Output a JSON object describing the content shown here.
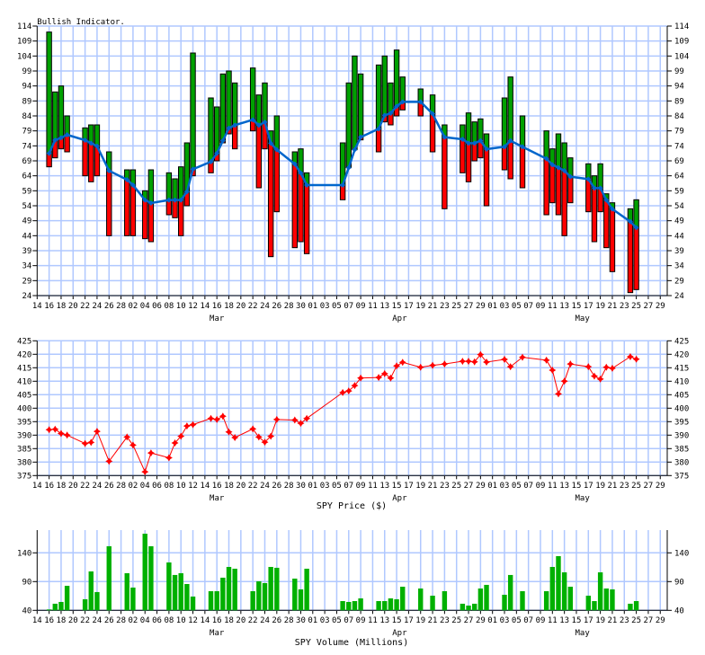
{
  "chart_data": [
    {
      "type": "bar",
      "title": "Bullish Indicator.",
      "ylim": [
        24,
        114
      ],
      "y_ticks": [
        "24",
        "29",
        "34",
        "39",
        "44",
        "49",
        "54",
        "59",
        "64",
        "69",
        "74",
        "79",
        "84",
        "89",
        "94",
        "99",
        "104",
        "109",
        "114"
      ],
      "grid": true,
      "colors": {
        "above": "#00a000",
        "below": "#ff0000",
        "line": "#0066cc"
      },
      "dates": [
        "02-16",
        "02-17",
        "02-18",
        "02-19",
        "02-22",
        "02-23",
        "02-24",
        "02-26",
        "03-01",
        "03-02",
        "03-04",
        "03-05",
        "03-08",
        "03-09",
        "03-10",
        "03-11",
        "03-12",
        "03-15",
        "03-16",
        "03-17",
        "03-18",
        "03-19",
        "03-22",
        "03-23",
        "03-24",
        "03-25",
        "03-26",
        "03-29",
        "03-30",
        "03-31",
        "04-06",
        "04-07",
        "04-08",
        "04-09",
        "04-12",
        "04-13",
        "04-14",
        "04-15",
        "04-16",
        "04-19",
        "04-21",
        "04-23",
        "04-26",
        "04-27",
        "04-28",
        "04-29",
        "04-30",
        "05-03",
        "05-04",
        "05-06",
        "05-10",
        "05-11",
        "05-12",
        "05-13",
        "05-14",
        "05-17",
        "05-18",
        "05-19",
        "05-20",
        "05-21",
        "05-24",
        "05-25"
      ],
      "high": [
        112,
        92,
        94,
        84,
        80,
        81,
        81,
        72,
        66,
        66,
        59,
        66,
        65,
        63,
        67,
        75,
        105,
        90,
        87,
        98,
        99,
        95,
        100,
        91,
        95,
        79,
        84,
        72,
        73,
        65,
        75,
        95,
        104,
        98,
        101,
        104,
        95,
        106,
        97,
        93,
        91,
        81,
        81,
        85,
        82,
        83,
        78,
        90,
        97,
        84,
        79,
        73,
        78,
        75,
        70,
        68,
        64,
        68,
        58,
        55,
        53,
        56
      ],
      "low": [
        67,
        70,
        73,
        72,
        64,
        62,
        64,
        44,
        44,
        44,
        43,
        42,
        51,
        50,
        44,
        54,
        64,
        65,
        69,
        75,
        78,
        73,
        79,
        60,
        73,
        37,
        52,
        40,
        42,
        38,
        56,
        67,
        73,
        76,
        72,
        82,
        81,
        84,
        86,
        84,
        72,
        53,
        65,
        62,
        69,
        70,
        54,
        66,
        63,
        60,
        51,
        55,
        51,
        44,
        55,
        52,
        42,
        52,
        40,
        32,
        25,
        26
      ],
      "line": [
        71.5,
        75.9,
        76.7,
        77.7,
        75.9,
        74.9,
        73.9,
        65.7,
        62.7,
        60.9,
        55.9,
        54.9,
        55.9,
        55.9,
        55.9,
        58.7,
        66.2,
        68.7,
        71.5,
        75.7,
        79.9,
        80.9,
        82.7,
        80.9,
        81.9,
        74.9,
        72.7,
        67.9,
        64.9,
        60.9,
        60.9,
        66.7,
        72.7,
        76.9,
        79.7,
        84.2,
        84.9,
        87.2,
        88.7,
        88.7,
        84.7,
        76.9,
        76.2,
        74.9,
        74.9,
        75.7,
        72.9,
        73.7,
        75.7,
        73.7,
        69.7,
        67.7,
        66.7,
        65.7,
        63.7,
        62.9,
        59.9,
        59.9,
        55.9,
        52.9,
        48.7,
        46.7
      ]
    },
    {
      "type": "line",
      "xlabel": "SPY Price ($)",
      "ylim": [
        375,
        425
      ],
      "y_ticks": [
        "375",
        "380",
        "385",
        "390",
        "395",
        "400",
        "405",
        "410",
        "415",
        "420",
        "425"
      ],
      "grid": true,
      "color": "#ff0000",
      "values": [
        392.0,
        392.2,
        390.6,
        390.0,
        386.9,
        387.3,
        391.4,
        380.3,
        389.3,
        386.3,
        376.4,
        383.4,
        381.6,
        387.1,
        389.6,
        393.4,
        393.9,
        396.2,
        395.8,
        397.0,
        391.2,
        389.1,
        392.3,
        389.3,
        387.4,
        389.6,
        395.8,
        395.6,
        394.4,
        396.2,
        405.8,
        406.4,
        408.4,
        411.2,
        411.4,
        412.8,
        411.2,
        415.7,
        417.0,
        415.2,
        415.9,
        416.4,
        417.4,
        417.4,
        417.2,
        419.9,
        417.1,
        418.1,
        415.4,
        418.9,
        417.8,
        414.1,
        405.3,
        410.0,
        416.4,
        415.4,
        411.9,
        410.8,
        415.2,
        414.8,
        419.1,
        418.2
      ]
    },
    {
      "type": "bar",
      "xlabel": "SPY Volume (Millions)",
      "ylim": [
        40,
        180
      ],
      "y_ticks": [
        "40",
        "90",
        "140"
      ],
      "grid": true,
      "color": "#00b000",
      "values": [
        41.6,
        51.5,
        54.6,
        82.7,
        59.3,
        107.7,
        71.8,
        151.5,
        104.6,
        79.6,
        173.3,
        151.5,
        123.3,
        101.5,
        104.6,
        85.8,
        64.0,
        73.3,
        73.3,
        96.8,
        115.5,
        112.4,
        73.3,
        90.5,
        87.4,
        115.5,
        114.0,
        95.2,
        76.5,
        112.4,
        56.1,
        54.6,
        56.1,
        60.8,
        56.1,
        56.1,
        60.8,
        59.3,
        81.1,
        78.0,
        65.5,
        73.3,
        51.5,
        48.3,
        51.5,
        78.0,
        84.3,
        67.1,
        101.5,
        73.3,
        73.3,
        115.5,
        134.3,
        106.1,
        81.1,
        65.5,
        56.1,
        106.1,
        78.0,
        76.5,
        51.5,
        56.1
      ]
    }
  ],
  "x_ticks": [
    "14",
    "16",
    "18",
    "20",
    "22",
    "24",
    "26",
    "28",
    "02",
    "04",
    "06",
    "08",
    "10",
    "12",
    "14",
    "16",
    "18",
    "20",
    "22",
    "24",
    "26",
    "28",
    "30",
    "01",
    "03",
    "05",
    "07",
    "09",
    "11",
    "13",
    "15",
    "17",
    "19",
    "21",
    "23",
    "25",
    "27",
    "29",
    "01",
    "03",
    "05",
    "07",
    "09",
    "11",
    "13",
    "15",
    "17",
    "19",
    "21",
    "23",
    "25",
    "27",
    "29"
  ],
  "month_labels": [
    "Mar",
    "Apr",
    "May"
  ],
  "grid_color": "#b0c8ff"
}
